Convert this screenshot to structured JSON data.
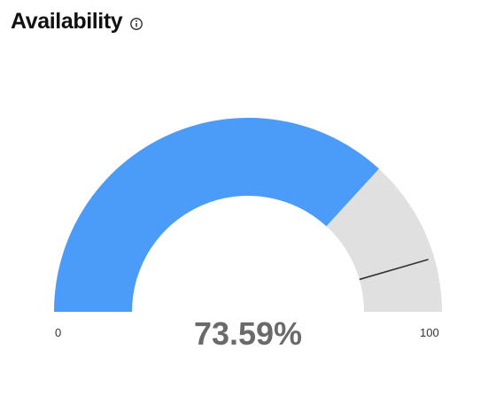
{
  "header": {
    "title": "Availability",
    "info_icon": "info-circle-icon"
  },
  "chart_data": {
    "type": "gauge",
    "title": "Availability",
    "value": 73.59,
    "value_label": "73.59%",
    "min": 0,
    "max": 100,
    "min_label": "0",
    "max_label": "100",
    "target": 91,
    "colors": {
      "fill": "#4a9cf8",
      "track": "#e0e0e0",
      "target_marker": "#333333"
    }
  }
}
